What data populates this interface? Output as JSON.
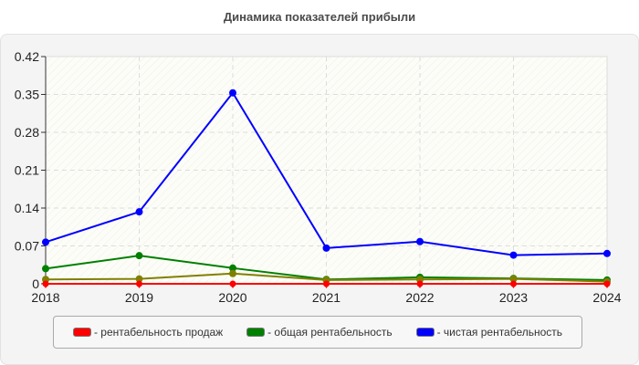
{
  "chart_data": {
    "type": "line",
    "title": "Динамика показателей прибыли",
    "xlabel": "",
    "ylabel": "",
    "x": [
      "2018",
      "2019",
      "2020",
      "2021",
      "2022",
      "2023",
      "2024"
    ],
    "yticks": [
      "0",
      "0.07",
      "0.14",
      "0.21",
      "0.28",
      "0.35",
      "0.42"
    ],
    "ylim": [
      0,
      0.42
    ],
    "grid": true,
    "legend_position": "bottom",
    "series": [
      {
        "name": "рентабельность продаж",
        "color": "#ff0000",
        "values": [
          0.0,
          0.0,
          0.0,
          0.0,
          0.0,
          0.0,
          0.0
        ],
        "in_legend": true
      },
      {
        "name": "общая рентабельность",
        "color": "#008000",
        "values": [
          0.028,
          0.052,
          0.029,
          0.008,
          0.012,
          0.01,
          0.007
        ],
        "in_legend": true
      },
      {
        "name": "чистая рентабельность",
        "color": "#0000ff",
        "values": [
          0.077,
          0.133,
          0.353,
          0.066,
          0.078,
          0.053,
          0.056
        ],
        "in_legend": true
      },
      {
        "name": "",
        "color": "#808000",
        "values": [
          0.008,
          0.009,
          0.019,
          0.007,
          0.008,
          0.009,
          0.004
        ],
        "in_legend": false
      }
    ]
  },
  "legend": {
    "items": [
      {
        "label": "- рентабельность продаж",
        "color": "#ff0000"
      },
      {
        "label": "- общая рентабельность",
        "color": "#008000"
      },
      {
        "label": "- чистая рентабельность",
        "color": "#0000ff"
      }
    ]
  }
}
